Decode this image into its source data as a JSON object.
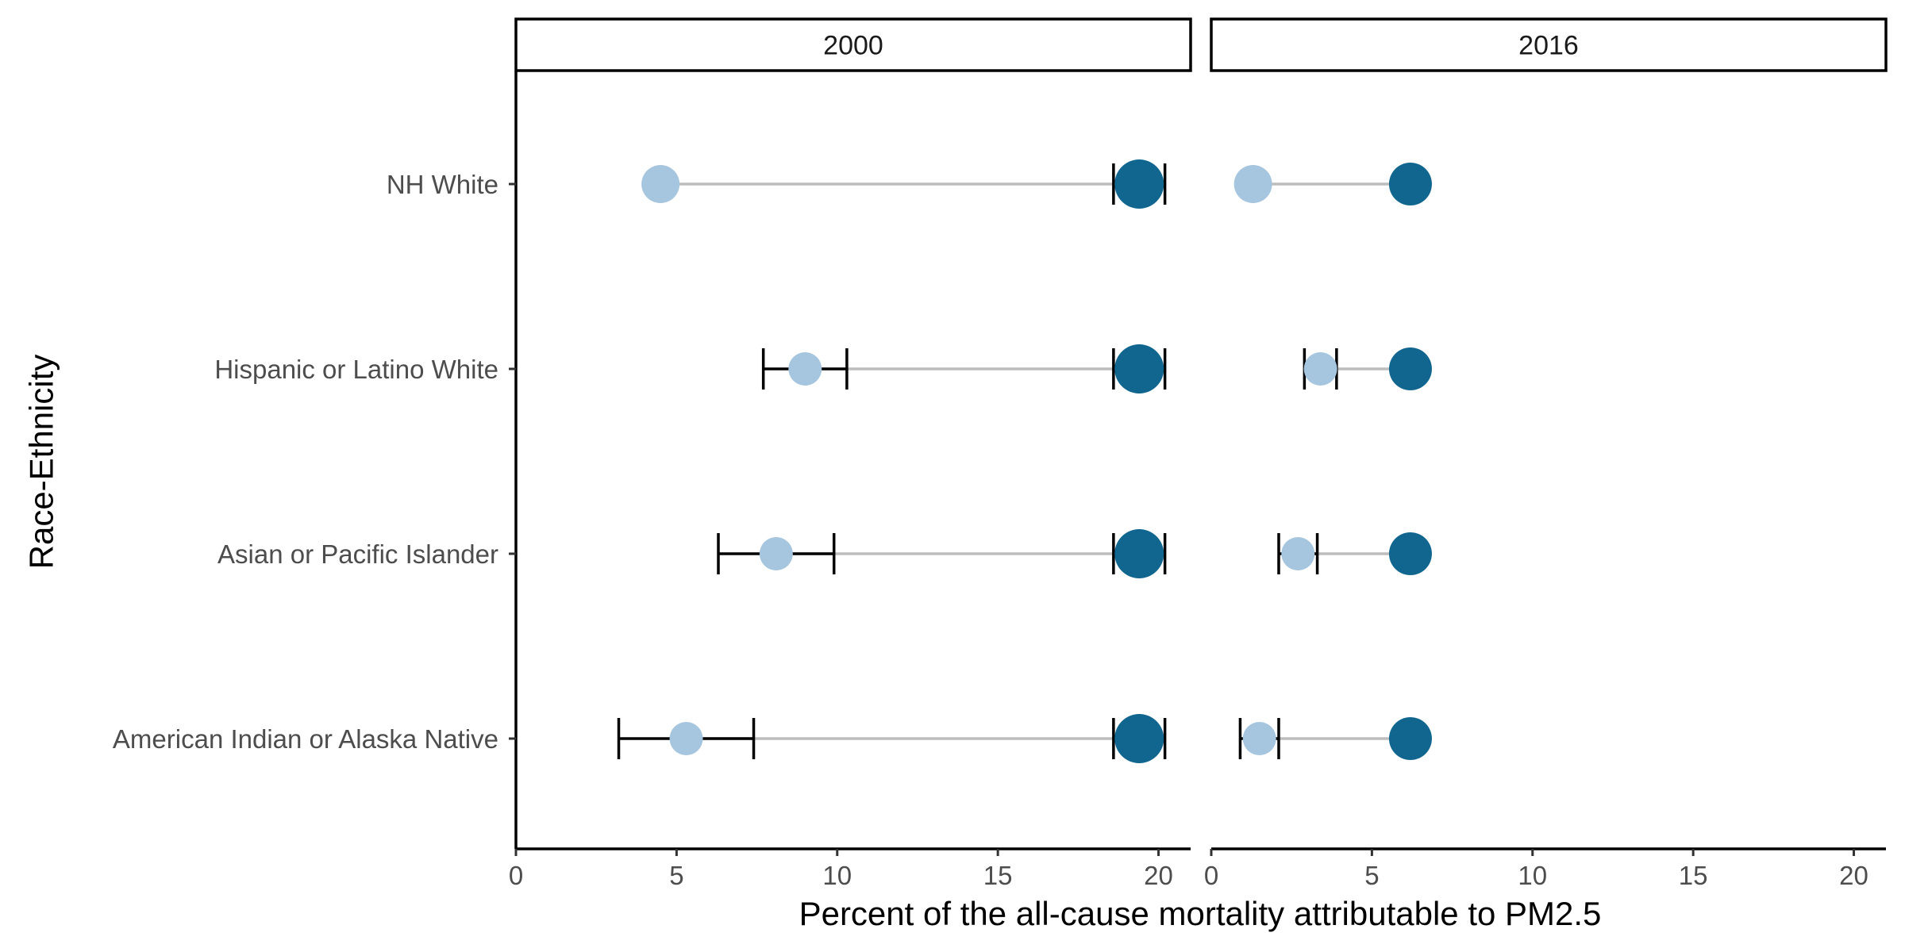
{
  "chart_data": {
    "type": "scatter",
    "xlabel": "Percent of the all-cause mortality attributable to PM2.5",
    "ylabel": "Race-Ethnicity",
    "xlim": [
      0,
      21
    ],
    "x_ticks": [
      0,
      5,
      10,
      15,
      20
    ],
    "categories": [
      "NH White",
      "Hispanic or Latino White",
      "Asian or Pacific Islander",
      "American Indian or Alaska Native"
    ],
    "colors": {
      "light": "#a6c5de",
      "dark": "#11668f",
      "segment": "#bdbdbd",
      "errorbar": "#000000"
    },
    "panels": [
      {
        "label": "2000",
        "reference": {
          "value": 19.4,
          "ci": [
            18.6,
            20.2
          ]
        },
        "groups": [
          {
            "category": "NH White",
            "value": 4.5,
            "ci": null
          },
          {
            "category": "Hispanic or Latino White",
            "value": 9.0,
            "ci": [
              7.7,
              10.3
            ]
          },
          {
            "category": "Asian or Pacific Islander",
            "value": 8.1,
            "ci": [
              6.3,
              9.9
            ]
          },
          {
            "category": "American Indian or Alaska Native",
            "value": 5.3,
            "ci": [
              3.2,
              7.4
            ]
          }
        ]
      },
      {
        "label": "2016",
        "reference": {
          "value": 6.2,
          "ci": null
        },
        "groups": [
          {
            "category": "NH White",
            "value": 1.3,
            "ci": null
          },
          {
            "category": "Hispanic or Latino White",
            "value": 3.4,
            "ci": [
              2.9,
              3.9
            ]
          },
          {
            "category": "Asian or Pacific Islander",
            "value": 2.7,
            "ci": [
              2.1,
              3.3
            ]
          },
          {
            "category": "American Indian or Alaska Native",
            "value": 1.5,
            "ci": [
              0.9,
              2.1
            ]
          }
        ]
      }
    ]
  }
}
